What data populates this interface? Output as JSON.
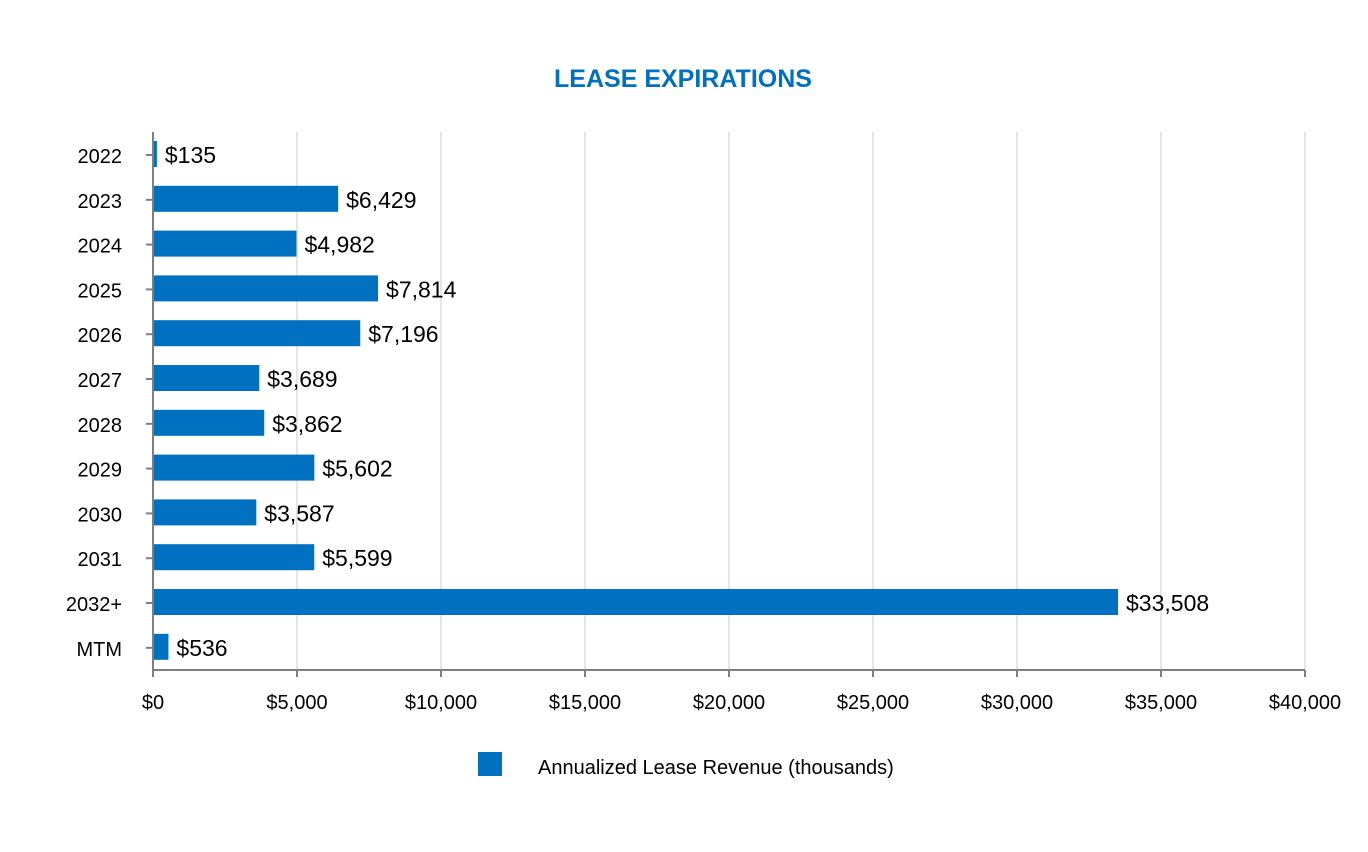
{
  "chart_data": {
    "type": "bar",
    "orientation": "horizontal",
    "title": "LEASE EXPIRATIONS",
    "categories": [
      "2022",
      "2023",
      "2024",
      "2025",
      "2026",
      "2027",
      "2028",
      "2029",
      "2030",
      "2031",
      "2032+",
      "MTM"
    ],
    "series": [
      {
        "name": "Annualized Lease Revenue (thousands)",
        "values": [
          135,
          6429,
          4982,
          7814,
          7196,
          3689,
          3862,
          5602,
          3587,
          5599,
          33508,
          536
        ],
        "color": "#0070C0"
      }
    ],
    "data_labels": [
      "$135",
      "$6,429",
      "$4,982",
      "$7,814",
      "$7,196",
      "$3,689",
      "$3,862",
      "$5,602",
      "$3,587",
      "$5,599",
      "$33,508",
      "$536"
    ],
    "xlim": [
      0,
      40000
    ],
    "x_ticks": [
      0,
      5000,
      10000,
      15000,
      20000,
      25000,
      30000,
      35000,
      40000
    ],
    "x_tick_labels": [
      "$0",
      "$5,000",
      "$10,000",
      "$15,000",
      "$20,000",
      "$25,000",
      "$30,000",
      "$35,000",
      "$40,000"
    ],
    "xlabel": "",
    "ylabel": "",
    "grid": "vertical",
    "legend_position": "bottom",
    "title_color": "#0070C0",
    "grid_color": "#e6e6e6",
    "axis_color": "#7f7f7f"
  }
}
